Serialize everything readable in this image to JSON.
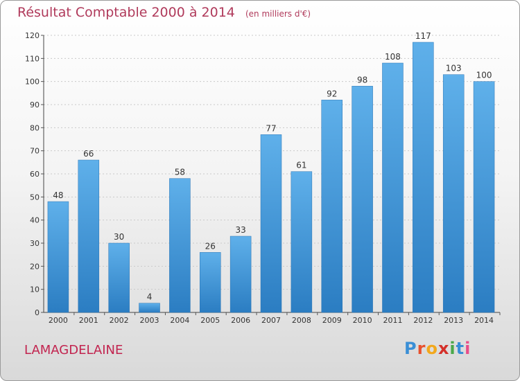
{
  "header": {
    "title": "Résultat Comptable 2000 à 2014",
    "unit": "(en milliers d'€)"
  },
  "footer": {
    "town": "LAMAGDELAINE",
    "logo_letters": [
      "P",
      "r",
      "o",
      "x",
      "i",
      "t",
      "i"
    ],
    "logo_colors": [
      "#3a8fd6",
      "#e8502d",
      "#f2a81d",
      "#d4302a",
      "#4aa84a",
      "#3a8fd6",
      "#e84d8a"
    ]
  },
  "chart_data": {
    "type": "bar",
    "title": "Résultat Comptable 2000 à 2014",
    "subtitle": "(en milliers d'€)",
    "xlabel": "",
    "ylabel": "",
    "categories": [
      "2000",
      "2001",
      "2002",
      "2003",
      "2004",
      "2005",
      "2006",
      "2007",
      "2008",
      "2009",
      "2010",
      "2011",
      "2012",
      "2013",
      "2014"
    ],
    "values": [
      48,
      66,
      30,
      4,
      58,
      26,
      33,
      77,
      61,
      92,
      98,
      108,
      117,
      103,
      100
    ],
    "ylim": [
      0,
      120
    ],
    "yticks": [
      0,
      10,
      20,
      30,
      40,
      50,
      60,
      70,
      80,
      90,
      100,
      110,
      120
    ],
    "grid": true,
    "bar_color": "#3d8fd4"
  }
}
